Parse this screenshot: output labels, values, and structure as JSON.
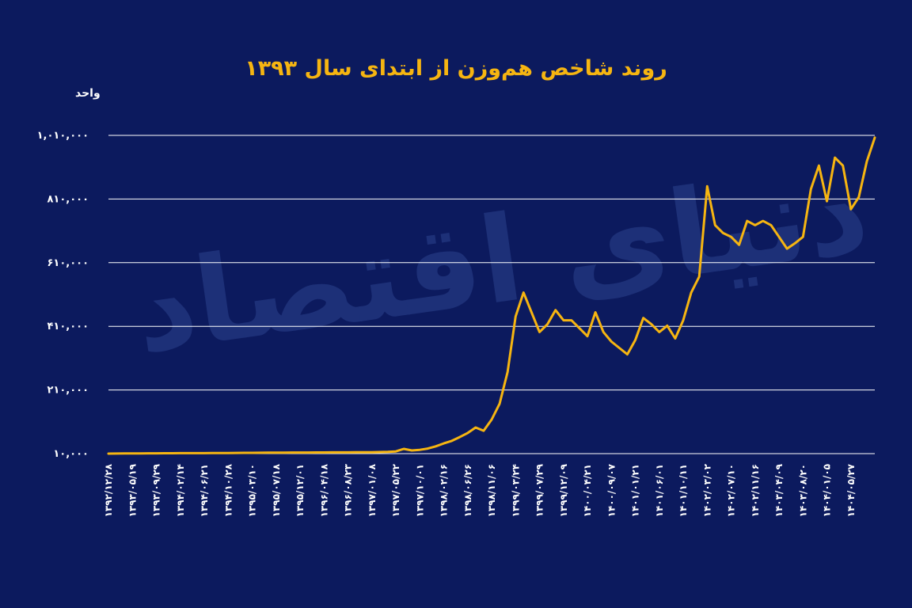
{
  "chart_data": {
    "type": "line",
    "title": "روند شاخص هم‌وزن از ابتدای سال ۱۳۹۳",
    "y_axis_label": "واحد",
    "watermark": "دنیای اقتصاد",
    "grid": true,
    "ylim": [
      10000,
      1010000
    ],
    "yticks": [
      {
        "value": 10000,
        "label": "۱۰,۰۰۰"
      },
      {
        "value": 210000,
        "label": "۲۱۰,۰۰۰"
      },
      {
        "value": 410000,
        "label": "۴۱۰,۰۰۰"
      },
      {
        "value": 610000,
        "label": "۶۱۰,۰۰۰"
      },
      {
        "value": 810000,
        "label": "۸۱۰,۰۰۰"
      },
      {
        "value": 1010000,
        "label": "۱,۰۱۰,۰۰۰"
      }
    ],
    "categories": [
      "۱۳۹۲/۱۲/۲۸",
      null,
      null,
      "۱۳۹۳/۰۵/۱۹",
      null,
      null,
      "۱۳۹۳/۰۹/۲۹",
      null,
      null,
      "۱۳۹۴/۰۲/۱۴",
      null,
      null,
      "۱۳۹۴/۰۶/۲۱",
      null,
      null,
      "۱۳۹۴/۱۰/۲۸",
      null,
      null,
      "۱۳۹۵/۰۳/۱۰",
      null,
      null,
      "۱۳۹۵/۰۷/۱۸",
      null,
      null,
      "۱۳۹۵/۱۲/۰۱",
      null,
      null,
      "۱۳۹۶/۰۴/۱۸",
      null,
      null,
      "۱۳۹۶/۰۸/۲۳",
      null,
      null,
      "۱۳۹۷/۰۱/۰۸",
      null,
      null,
      "۱۳۹۷/۰۵/۲۲",
      null,
      null,
      "۱۳۹۷/۱۰/۰۱",
      null,
      null,
      "۱۳۹۸/۰۲/۱۶",
      null,
      null,
      "۱۳۹۸/۰۶/۲۶",
      null,
      null,
      "۱۳۹۸/۱۱/۰۶",
      null,
      null,
      "۱۳۹۹/۰۳/۲۴",
      null,
      null,
      "۱۳۹۹/۰۷/۲۹",
      null,
      null,
      "۱۳۹۹/۱۲/۰۹",
      null,
      null,
      "۱۴۰۰/۰۴/۲۱",
      null,
      null,
      "۱۴۰۰/۰۹/۰۷",
      null,
      null,
      "۱۴۰۱/۰۱/۲۱",
      null,
      null,
      "۱۴۰۱/۰۶/۰۱",
      null,
      null,
      "۱۴۰۱/۱۰/۱۱",
      null,
      null,
      "۱۴۰۲/۰۳/۰۲",
      null,
      null,
      "۱۴۰۲/۰۷/۱۰",
      null,
      null,
      "۱۴۰۲/۱۱/۱۶",
      null,
      null,
      "۱۴۰۳/۰۴/۰۹",
      null,
      null,
      "۱۴۰۳/۰۸/۲۰",
      null,
      null,
      "۱۴۰۴/۰۱/۰۵",
      null,
      null,
      "۱۴۰۴/۰۵/۲۷",
      null,
      null,
      null
    ],
    "series": [
      {
        "name": "شاخص هم‌وزن",
        "color": "#f6b511",
        "values": [
          10000,
          10200,
          10400,
          10600,
          10800,
          11000,
          11000,
          11200,
          11300,
          11400,
          11500,
          11500,
          11600,
          11700,
          11800,
          12000,
          12200,
          12400,
          12600,
          12800,
          13000,
          13200,
          13300,
          13400,
          13500,
          13600,
          13700,
          13800,
          13900,
          14000,
          14100,
          14200,
          14400,
          14600,
          15000,
          15500,
          17000,
          25000,
          20000,
          22000,
          26000,
          33000,
          42000,
          50000,
          62000,
          75000,
          92000,
          82000,
          117000,
          167000,
          267000,
          441000,
          516000,
          454000,
          392000,
          417000,
          461000,
          429000,
          429000,
          404000,
          379000,
          454000,
          392000,
          362000,
          342000,
          322000,
          367000,
          436000,
          417000,
          392000,
          412000,
          372000,
          429000,
          516000,
          566000,
          850000,
          728000,
          703000,
          691000,
          666000,
          741000,
          728000,
          741000,
          728000,
          691000,
          654000,
          671000,
          691000,
          841000,
          915000,
          803000,
          940000,
          915000,
          778000,
          816000,
          928000,
          1003000
        ]
      }
    ]
  }
}
